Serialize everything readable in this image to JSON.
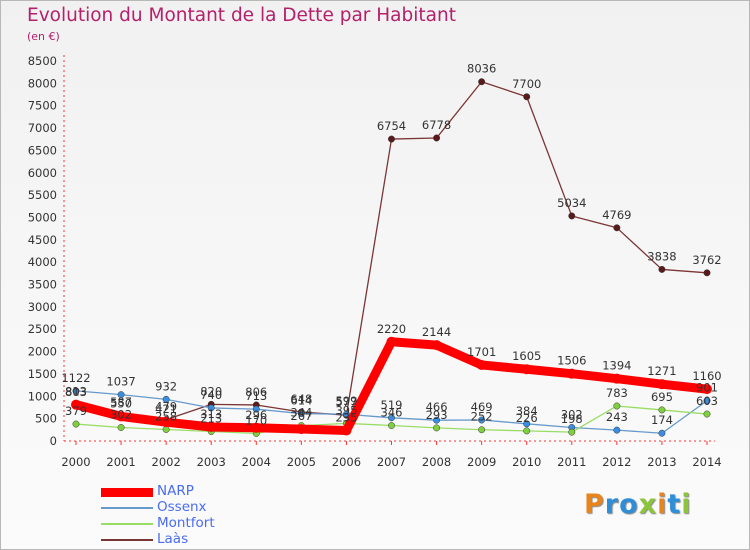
{
  "title": "Evolution du Montant de la Dette par Habitant",
  "unit_label": "(en €)",
  "logo": {
    "text": "Proxiti",
    "letters": [
      "P",
      "r",
      "o",
      "x",
      "i",
      "t",
      "i"
    ],
    "colors": [
      "#e8841c",
      "#2e8fd8",
      "#2e8fd8",
      "#8cc43c",
      "#e8841c",
      "#2e8fd8",
      "#8cc43c"
    ]
  },
  "chart_data": {
    "type": "line",
    "x": [
      "2000",
      "2001",
      "2002",
      "2003",
      "2004",
      "2005",
      "2006",
      "2007",
      "2008",
      "2009",
      "2010",
      "2011",
      "2012",
      "2013",
      "2014"
    ],
    "ylim": [
      0,
      8500
    ],
    "yticks": [
      0,
      500,
      1000,
      1500,
      2000,
      2500,
      3000,
      3500,
      4000,
      4500,
      5000,
      5500,
      6000,
      6500,
      7000,
      7500,
      8000,
      8500
    ],
    "grid": false,
    "legend_position": "bottom-left",
    "series": [
      {
        "name": "NARP",
        "color": "#ff0000",
        "marker": "#ff0000",
        "values": [
          813,
          550,
          421,
          313,
          296,
          267,
          235,
          2220,
          2144,
          1701,
          1605,
          1506,
          1394,
          1271,
          1160
        ],
        "labels": [
          "813",
          "550",
          "421",
          "313",
          "296",
          "267",
          "235",
          "2220",
          "2144",
          "1701",
          "1605",
          "1506",
          "1394",
          "1271",
          "1160"
        ]
      },
      {
        "name": "Ossenx",
        "color": "#6699cc",
        "marker": "#3b8de0",
        "values": [
          1122,
          1037,
          932,
          740,
          713,
          614,
          599,
          519,
          466,
          469,
          384,
          302,
          243,
          174,
          901
        ],
        "labels": [
          "1122",
          "1037",
          "932",
          "740",
          "713",
          "614",
          "599",
          "519",
          "466",
          "469",
          "384",
          "302",
          "243",
          "174",
          "901"
        ]
      },
      {
        "name": "Montfort",
        "color": "#99dd66",
        "marker": "#7fd040",
        "values": [
          379,
          302,
          258,
          213,
          170,
          344,
          395,
          346,
          293,
          252,
          226,
          198,
          783,
          695,
          603
        ],
        "labels": [
          "379",
          "302",
          "258",
          "213",
          "170",
          "344",
          "395",
          "346",
          "293",
          "252",
          "226",
          "198",
          "783",
          "695",
          "603"
        ]
      },
      {
        "name": "Laàs",
        "color": "#7a3535",
        "marker": "#5a1a1a",
        "values": [
          803,
          587,
          479,
          820,
          806,
          648,
          577,
          6754,
          6778,
          8036,
          7700,
          5034,
          4769,
          3838,
          3762
        ],
        "labels": [
          "803",
          "587",
          "479",
          "820",
          "806",
          "648",
          "577",
          "6754",
          "6778",
          "8036",
          "7700",
          "5034",
          "4769",
          "3838",
          "3762"
        ]
      }
    ]
  }
}
